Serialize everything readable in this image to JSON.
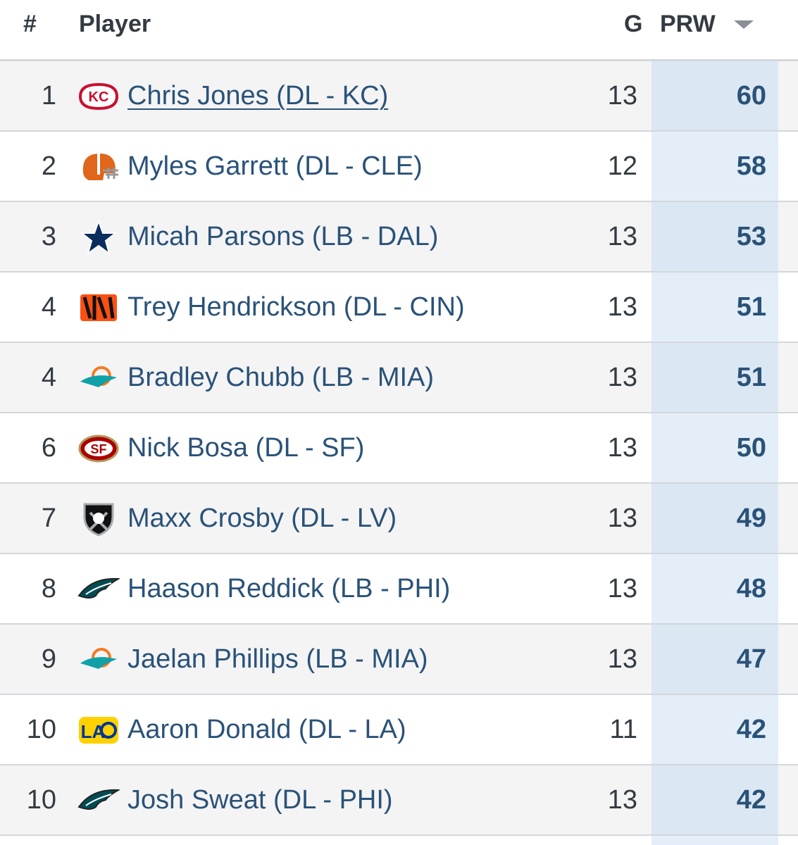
{
  "header": {
    "rank": "#",
    "player": "Player",
    "games": "G",
    "prw": "PRW"
  },
  "colors": {
    "link": "#2a5278",
    "prw_column_bg": "#e3eef8",
    "row_shade": "#f4f4f5"
  },
  "rows": [
    {
      "rank": "1",
      "name": "Chris Jones (DL - KC)",
      "games": "13",
      "prw": "60",
      "team_icon": "chiefs-logo-icon"
    },
    {
      "rank": "2",
      "name": "Myles Garrett (DL - CLE)",
      "games": "12",
      "prw": "58",
      "team_icon": "browns-helmet-icon"
    },
    {
      "rank": "3",
      "name": "Micah Parsons (LB - DAL)",
      "games": "13",
      "prw": "53",
      "team_icon": "cowboys-star-icon"
    },
    {
      "rank": "4",
      "name": "Trey Hendrickson (DL - CIN)",
      "games": "13",
      "prw": "51",
      "team_icon": "bengals-logo-icon"
    },
    {
      "rank": "4",
      "name": "Bradley Chubb (LB - MIA)",
      "games": "13",
      "prw": "51",
      "team_icon": "dolphins-logo-icon"
    },
    {
      "rank": "6",
      "name": "Nick Bosa (DL - SF)",
      "games": "13",
      "prw": "50",
      "team_icon": "49ers-logo-icon"
    },
    {
      "rank": "7",
      "name": "Maxx Crosby (DL - LV)",
      "games": "13",
      "prw": "49",
      "team_icon": "raiders-shield-icon"
    },
    {
      "rank": "8",
      "name": "Haason Reddick (LB - PHI)",
      "games": "13",
      "prw": "48",
      "team_icon": "eagles-logo-icon"
    },
    {
      "rank": "9",
      "name": "Jaelan Phillips (LB - MIA)",
      "games": "13",
      "prw": "47",
      "team_icon": "dolphins-logo-icon"
    },
    {
      "rank": "10",
      "name": "Aaron Donald (DL - LA)",
      "games": "11",
      "prw": "42",
      "team_icon": "rams-logo-icon"
    },
    {
      "rank": "10",
      "name": "Josh Sweat (DL - PHI)",
      "games": "13",
      "prw": "42",
      "team_icon": "eagles-logo-icon"
    }
  ]
}
